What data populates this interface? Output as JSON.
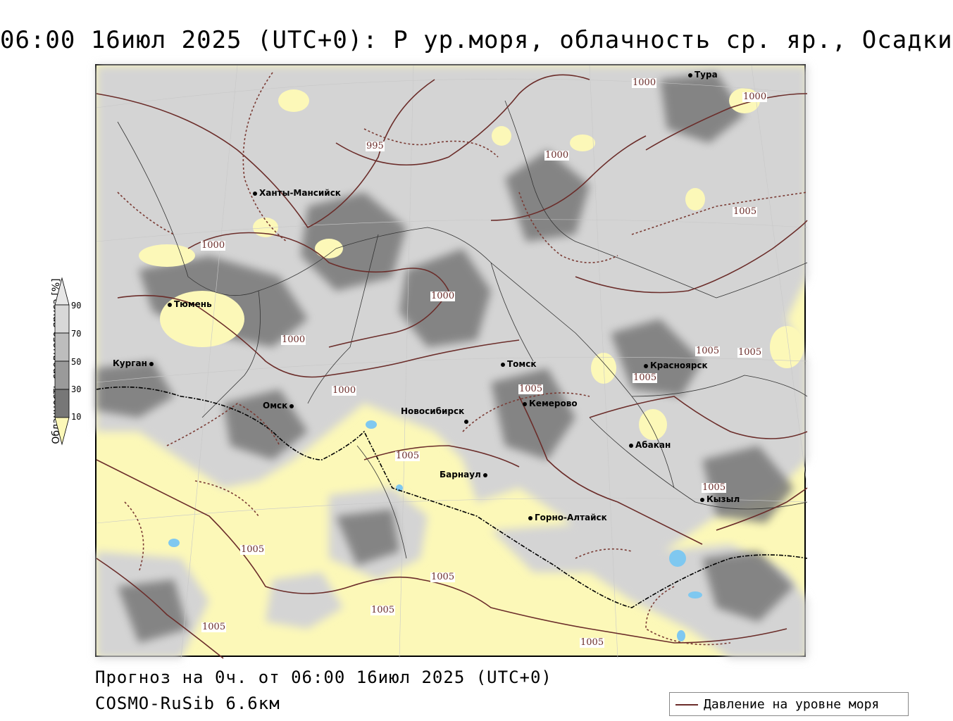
{
  "title": "06:00 16июл 2025 (UTC+0): P ур.моря, облачность ср. яр., Осадки",
  "footer": {
    "forecast": "Прогноз на 0ч. от 06:00 16июл 2025 (UTC+0)",
    "model": "COSMO-RuSib 6.6км"
  },
  "legend": {
    "title": "Облачность среднего яруса [%]",
    "ticks": [
      "90",
      "70",
      "50",
      "30",
      "10"
    ],
    "colors": [
      "#d8d8d8",
      "#bdbdbd",
      "#9a9a9a",
      "#777777",
      "#555555"
    ]
  },
  "pressure_legend": {
    "label": "Давление на уровне моря",
    "color": "#6b2d2a"
  },
  "colors": {
    "land": "#fcf8b8",
    "water": "#7fc8f0",
    "cloud_light": "#d4d4d4",
    "cloud_dark": "#6a6a6a"
  },
  "cities": [
    {
      "name": "Тура"
    },
    {
      "name": "Ханты-Мансийск"
    },
    {
      "name": "Тюмень"
    },
    {
      "name": "Курган"
    },
    {
      "name": "Омск"
    },
    {
      "name": "Томск"
    },
    {
      "name": "Красноярск"
    },
    {
      "name": "Кемерово"
    },
    {
      "name": "Новосибирск"
    },
    {
      "name": "Абакан"
    },
    {
      "name": "Барнаул"
    },
    {
      "name": "Кызыл"
    },
    {
      "name": "Горно-Алтайск"
    }
  ],
  "isobar_labels": [
    "1000",
    "1000",
    "995",
    "1000",
    "1005",
    "1000",
    "1000",
    "1000",
    "1000",
    "1005",
    "1005",
    "1005",
    "1005",
    "1005",
    "1005",
    "1005",
    "1005",
    "1005",
    "1005",
    "1005"
  ]
}
